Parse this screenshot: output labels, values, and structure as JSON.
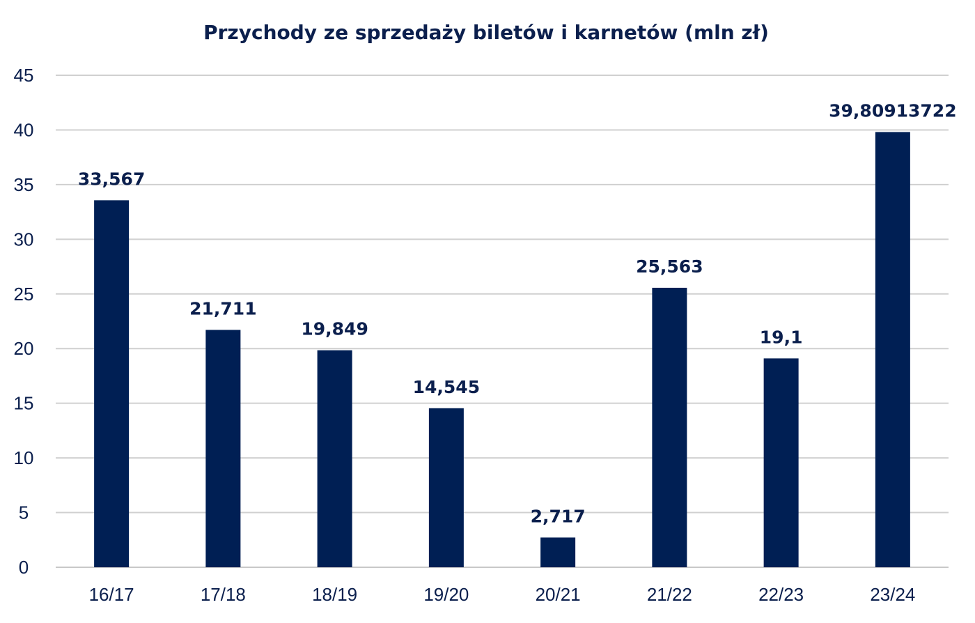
{
  "chart_data": {
    "type": "bar",
    "title": "Przychody ze sprzedaży biletów i karnetów (mln zł)",
    "xlabel": "",
    "ylabel": "",
    "categories": [
      "16/17",
      "17/18",
      "18/19",
      "19/20",
      "20/21",
      "21/22",
      "22/23",
      "23/24"
    ],
    "values": [
      33.567,
      21.711,
      19.849,
      14.545,
      2.717,
      25.563,
      19.1,
      39.80913722
    ],
    "data_labels": [
      "33,567",
      "21,711",
      "19,849",
      "14,545",
      "2,717",
      "25,563",
      "19,1",
      "39,80913722"
    ],
    "ylim": [
      0,
      45
    ],
    "yticks": [
      0,
      5,
      10,
      15,
      20,
      25,
      30,
      35,
      40,
      45
    ],
    "grid": true,
    "legend": "none",
    "bar_color": "#001f54",
    "text_color": "#0b1f4d"
  }
}
